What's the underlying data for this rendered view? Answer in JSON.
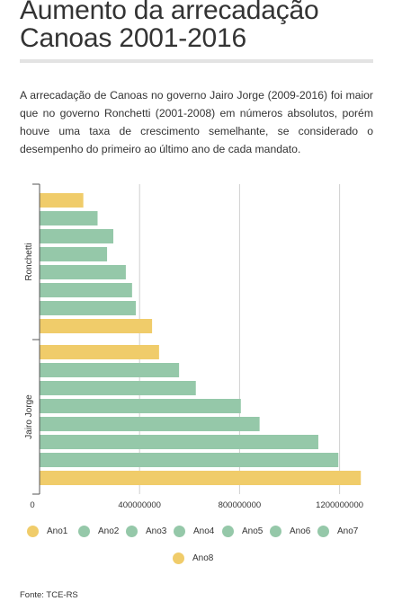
{
  "title": "Aumento da arrecadação Canoas 2001-2016",
  "subtitle": "A arrecadação de Canoas no governo Jairo Jorge (2009-2016) foi maior que no governo Ronchetti (2001-2008) em números absolutos, porém houve uma taxa de crescimento semelhante, se considerado o desempenho do primeiro ao último ano de cada mandato.",
  "source": "Fonte: TCE-RS",
  "colors": {
    "first_last": "#f0cc6a",
    "middle": "#95c8a9"
  },
  "chart_data": {
    "type": "bar",
    "orientation": "horizontal",
    "categories": [
      "Ronchetti",
      "Jairo Jorge"
    ],
    "series": [
      {
        "name": "Ano1",
        "color": "#f0cc6a",
        "values": [
          175000000,
          478000000
        ]
      },
      {
        "name": "Ano2",
        "color": "#95c8a9",
        "values": [
          232000000,
          558000000
        ]
      },
      {
        "name": "Ano3",
        "color": "#95c8a9",
        "values": [
          295000000,
          625000000
        ]
      },
      {
        "name": "Ano4",
        "color": "#95c8a9",
        "values": [
          270000000,
          805000000
        ]
      },
      {
        "name": "Ano5",
        "color": "#95c8a9",
        "values": [
          345000000,
          880000000
        ]
      },
      {
        "name": "Ano6",
        "color": "#95c8a9",
        "values": [
          370000000,
          1115000000
        ]
      },
      {
        "name": "Ano7",
        "color": "#95c8a9",
        "values": [
          385000000,
          1195000000
        ]
      },
      {
        "name": "Ano8",
        "color": "#f0cc6a",
        "values": [
          450000000,
          1285000000
        ]
      }
    ],
    "xlim": [
      0,
      1300000000
    ],
    "xticks": [
      0,
      400000000,
      800000000,
      1200000000
    ],
    "xtick_labels": [
      "0",
      "400000000",
      "800000000",
      "1200000000"
    ],
    "grid": true,
    "legend_position": "bottom"
  }
}
